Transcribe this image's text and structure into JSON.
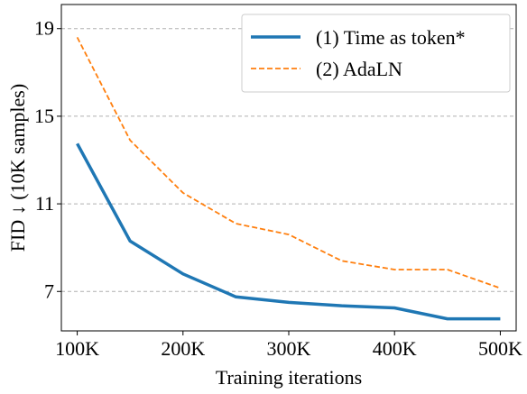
{
  "chart_data": {
    "type": "line",
    "xlabel": "Training iterations",
    "ylabel": "FID ↓ (10K samples)",
    "x": [
      100000,
      150000,
      200000,
      250000,
      300000,
      350000,
      400000,
      450000,
      500000
    ],
    "xticks": [
      100000,
      200000,
      300000,
      400000,
      500000
    ],
    "xtick_labels": [
      "100K",
      "200K",
      "300K",
      "400K",
      "500K"
    ],
    "yticks": [
      7,
      11,
      15,
      19
    ],
    "ytick_labels": [
      "7",
      "11",
      "15",
      "19"
    ],
    "xlim": [
      85000,
      515000
    ],
    "ylim": [
      5.2,
      20.1
    ],
    "grid": "horizontal dashed",
    "legend_position": "top-right",
    "series": [
      {
        "name": "(1) Time as token*",
        "color": "#1f77b4",
        "style": "solid",
        "values": [
          13.75,
          9.3,
          7.8,
          6.75,
          6.5,
          6.35,
          6.25,
          5.75,
          5.75
        ]
      },
      {
        "name": "(2) AdaLN",
        "color": "#ff7f0e",
        "style": "dashed",
        "values": [
          18.6,
          13.9,
          11.5,
          10.1,
          9.6,
          8.4,
          8.0,
          8.0,
          7.15
        ]
      }
    ]
  }
}
